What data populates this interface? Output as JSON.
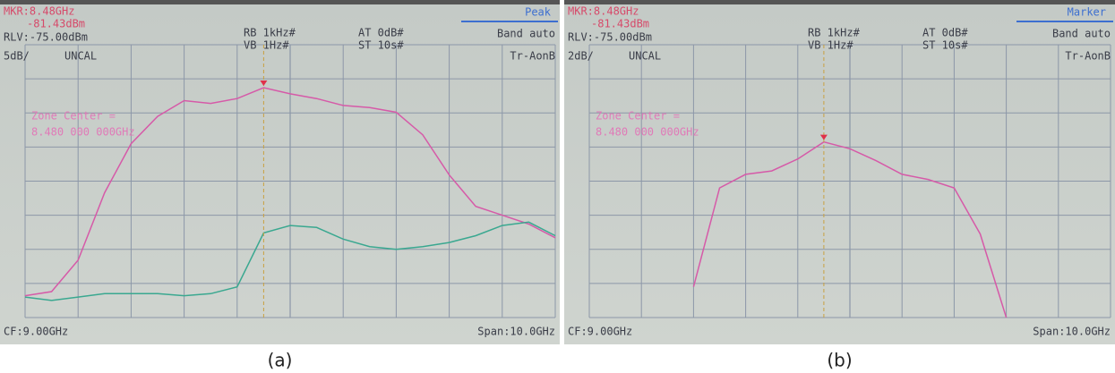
{
  "chart_data": [
    {
      "type": "line",
      "caption": "(a)",
      "marker_freq": "MKR:8.48GHz",
      "marker_level": "-81.43dBm",
      "ref_level": "RLV:-75.00dBm",
      "rbw": "RB 1kHz#",
      "vbw": "VB 1Hz#",
      "atten": "AT 0dB#",
      "sweep": "ST 10s#",
      "mode": "Peak",
      "band": "Band auto",
      "scale": "5dB/",
      "status": "UNCAL",
      "trace_mode": "Tr-AonB",
      "zone_label": "Zone Center =",
      "zone_value": "8.480 000 000GHz",
      "center": "CF:9.00GHz",
      "span": "Span:10.0GHz",
      "x": [
        4,
        4.5,
        5,
        5.5,
        6,
        6.5,
        7,
        7.5,
        8,
        8.5,
        9,
        9.5,
        10,
        10.5,
        11,
        11.5,
        12,
        12.5,
        13,
        13.5,
        14
      ],
      "xlim": [
        4,
        14
      ],
      "ylim": [
        -115,
        -75
      ],
      "series": [
        {
          "color": "#d65aa8",
          "values": [
            -111.8,
            -111.2,
            -106.6,
            -96.7,
            -89.5,
            -85.5,
            -83.2,
            -83.6,
            -82.9,
            -81.3,
            -82.2,
            -82.9,
            -83.9,
            -84.2,
            -84.9,
            -88.2,
            -94.1,
            -98.7,
            -100,
            -101.3,
            -103.3
          ]
        },
        {
          "color": "#3aa890",
          "values": [
            -112,
            -112.5,
            -112,
            -111.5,
            -111.5,
            -111.5,
            -111.8,
            -111.5,
            -110.5,
            -102.6,
            -101.5,
            -101.8,
            -103.5,
            -104.6,
            -105,
            -104.6,
            -104,
            -103,
            -101.5,
            -101,
            -103
          ]
        }
      ]
    },
    {
      "type": "line",
      "caption": "(b)",
      "marker_freq": "MKR:8.48GHz",
      "marker_level": "-81.43dBm",
      "ref_level": "RLV:-75.00dBm",
      "rbw": "RB 1kHz#",
      "vbw": "VB 1Hz#",
      "atten": "AT 0dB#",
      "sweep": "ST 10s#",
      "mode": "Marker",
      "band": "Band auto",
      "scale": "2dB/",
      "status": "UNCAL",
      "trace_mode": "Tr-AonB",
      "zone_label": "Zone Center =",
      "zone_value": "8.480 000 000GHz",
      "center": "CF:9.00GHz",
      "span": "Span:10.0GHz",
      "x": [
        4,
        4.5,
        5,
        5.5,
        6,
        6.5,
        7,
        7.5,
        8,
        8.5,
        9,
        9.5,
        10,
        10.5,
        11,
        11.5,
        12,
        12.5,
        13,
        13.5,
        14
      ],
      "xlim": [
        4,
        14
      ],
      "ylim": [
        -91,
        -75
      ],
      "series": [
        {
          "color": "#d65aa8",
          "values": [
            null,
            null,
            null,
            null,
            -89.2,
            -83.4,
            -82.6,
            -82.4,
            -81.7,
            -80.7,
            -81.1,
            -81.8,
            -82.6,
            -82.9,
            -83.4,
            -86.1,
            -91,
            null,
            null,
            null,
            null
          ]
        }
      ]
    }
  ]
}
